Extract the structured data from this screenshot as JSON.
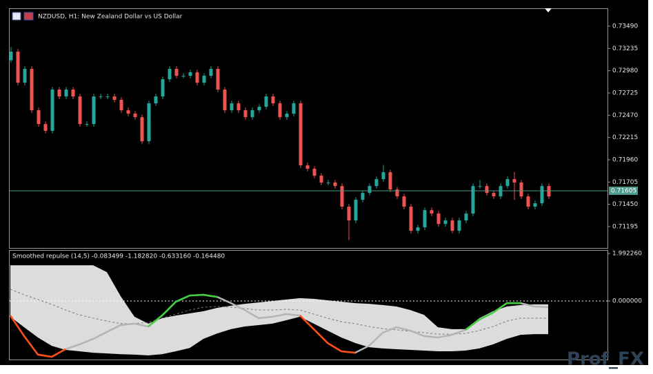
{
  "chart_data": [
    {
      "type": "candlestick",
      "title": "NZDUSD, H1:  New Zealand Dollar vs US Dollar",
      "open": [
        0.731,
        0.73198,
        0.72843,
        0.73001,
        0.72527,
        0.72369,
        0.72291,
        0.72764,
        0.72685,
        0.72764,
        0.72685,
        0.72369,
        0.72369,
        0.72685,
        0.72685,
        0.72685,
        0.72646,
        0.72527,
        0.72488,
        0.72448,
        0.72172,
        0.72606,
        0.72685,
        0.72882,
        0.73001,
        0.72922,
        0.72922,
        0.72961,
        0.72843,
        0.72922,
        0.73001,
        0.72764,
        0.72527,
        0.72606,
        0.72527,
        0.72448,
        0.72527,
        0.72567,
        0.72685,
        0.72606,
        0.72448,
        0.72488,
        0.72606,
        0.71896,
        0.71857,
        0.71778,
        0.71699,
        0.71699,
        0.71659,
        0.71423,
        0.71265,
        0.71502,
        0.7158,
        0.71659,
        0.71738,
        0.71817,
        0.7162,
        0.71541,
        0.71423,
        0.71147,
        0.71186,
        0.71383,
        0.71344,
        0.71225,
        0.71265,
        0.71147,
        0.71265,
        0.71344,
        0.71659,
        0.71659,
        0.7158,
        0.71541,
        0.71659,
        0.71738,
        0.71699,
        0.71541,
        0.71423,
        0.71462,
        0.71659
      ],
      "high": [
        0.7325,
        0.73228,
        0.73031,
        0.73031,
        0.72557,
        0.72399,
        0.72794,
        0.72794,
        0.72794,
        0.72794,
        0.72715,
        0.72399,
        0.72715,
        0.72715,
        0.72715,
        0.72715,
        0.72676,
        0.72557,
        0.72518,
        0.72478,
        0.72636,
        0.72715,
        0.72912,
        0.73031,
        0.73031,
        0.72952,
        0.72991,
        0.72991,
        0.72952,
        0.73031,
        0.73031,
        0.72794,
        0.72636,
        0.72636,
        0.72557,
        0.72557,
        0.72597,
        0.72715,
        0.72715,
        0.72636,
        0.72518,
        0.72636,
        0.72636,
        0.71926,
        0.71887,
        0.71808,
        0.71729,
        0.71729,
        0.71689,
        0.71453,
        0.71532,
        0.7161,
        0.71689,
        0.71768,
        0.719,
        0.71847,
        0.7165,
        0.71571,
        0.71453,
        0.71216,
        0.71413,
        0.71413,
        0.71374,
        0.71295,
        0.71295,
        0.71295,
        0.71374,
        0.71689,
        0.71729,
        0.71689,
        0.7161,
        0.71689,
        0.71768,
        0.7182,
        0.71729,
        0.71571,
        0.71492,
        0.71689,
        0.71689
      ],
      "low": [
        0.7307,
        0.72813,
        0.72813,
        0.72497,
        0.72339,
        0.72261,
        0.72261,
        0.72655,
        0.72655,
        0.72655,
        0.72339,
        0.72339,
        0.72339,
        0.72655,
        0.72655,
        0.72616,
        0.72497,
        0.72458,
        0.72418,
        0.72142,
        0.72142,
        0.72576,
        0.72655,
        0.72852,
        0.72892,
        0.72892,
        0.72892,
        0.72813,
        0.72813,
        0.72892,
        0.72734,
        0.72497,
        0.72497,
        0.72497,
        0.72418,
        0.72418,
        0.72497,
        0.72537,
        0.72576,
        0.72418,
        0.72418,
        0.72458,
        0.71866,
        0.71827,
        0.71748,
        0.71669,
        0.71669,
        0.71629,
        0.71393,
        0.7104,
        0.71235,
        0.71472,
        0.7155,
        0.71629,
        0.71708,
        0.7159,
        0.71511,
        0.71393,
        0.71117,
        0.71117,
        0.71156,
        0.71314,
        0.71195,
        0.71195,
        0.71117,
        0.71117,
        0.71235,
        0.71314,
        0.71629,
        0.7155,
        0.71511,
        0.71511,
        0.71629,
        0.715,
        0.71511,
        0.71393,
        0.71393,
        0.71432,
        0.71511
      ],
      "close": [
        0.73198,
        0.72843,
        0.73001,
        0.72527,
        0.72369,
        0.72291,
        0.72764,
        0.72685,
        0.72764,
        0.72685,
        0.72369,
        0.72369,
        0.72685,
        0.72685,
        0.72685,
        0.72646,
        0.72527,
        0.72488,
        0.72448,
        0.72172,
        0.72606,
        0.72685,
        0.72882,
        0.73001,
        0.72922,
        0.72922,
        0.72961,
        0.72843,
        0.72922,
        0.73001,
        0.72764,
        0.72527,
        0.72606,
        0.72527,
        0.72448,
        0.72527,
        0.72567,
        0.72685,
        0.72606,
        0.72448,
        0.72488,
        0.72606,
        0.71896,
        0.71857,
        0.71778,
        0.71699,
        0.71699,
        0.71659,
        0.71423,
        0.71265,
        0.71502,
        0.7158,
        0.71659,
        0.71738,
        0.71817,
        0.7162,
        0.71541,
        0.71423,
        0.71147,
        0.71186,
        0.71383,
        0.71344,
        0.71225,
        0.71265,
        0.71147,
        0.71265,
        0.71344,
        0.71659,
        0.71659,
        0.7158,
        0.71541,
        0.71659,
        0.71738,
        0.71699,
        0.71541,
        0.71423,
        0.71462,
        0.71659,
        0.71541
      ],
      "up_color": "#26a69a",
      "down_color": "#ef5350",
      "ylim": [
        0.7095,
        0.73695
      ],
      "yticks": [
        {
          "value": 0.7349,
          "label": "0.73490"
        },
        {
          "value": 0.73235,
          "label": "0.73235"
        },
        {
          "value": 0.7298,
          "label": "0.72980"
        },
        {
          "value": 0.72725,
          "label": "0.72725"
        },
        {
          "value": 0.7247,
          "label": "0.72470"
        },
        {
          "value": 0.72215,
          "label": "0.72215"
        },
        {
          "value": 0.7196,
          "label": "0.71960"
        },
        {
          "value": 0.71705,
          "label": "0.71705"
        },
        {
          "value": 0.7145,
          "label": "0.71450"
        },
        {
          "value": 0.71195,
          "label": "0.71195"
        }
      ],
      "current_price": {
        "value": 0.71605,
        "label": "0.71605"
      },
      "current_price_color": "#4e9a8c"
    },
    {
      "type": "line",
      "title": "Smoothed repulse (14,5) -0.083499 -1.182820 -0.633160 -0.164480",
      "band_color": "#dcdcdc",
      "series": [
        {
          "color": "#dcdcdc",
          "values": [
            1.5,
            1.5,
            1.5,
            1.5,
            1.5,
            1.5,
            1.5,
            1.21,
            0.2,
            -0.66,
            -0.95,
            -0.72,
            -0.61,
            -0.52,
            -0.43,
            -0.29,
            -0.2,
            -0.12,
            -0.06,
            0,
            0.06,
            0.12,
            0.09,
            0.03,
            -0.03,
            -0.09,
            -0.12,
            -0.17,
            -0.23,
            -0.38,
            -0.58,
            -1.1,
            -1.18,
            -1.18,
            -0.72,
            -0.43,
            -0.23,
            -0.17,
            -0.14,
            -0.14
          ]
        },
        {
          "color": "#dcdcdc",
          "values": [
            -0.66,
            -1.1,
            -1.53,
            -1.88,
            -2.05,
            -2.11,
            -2.17,
            -2.2,
            -2.23,
            -2.25,
            -2.28,
            -2.23,
            -2.11,
            -1.97,
            -1.59,
            -1.36,
            -1.18,
            -1.07,
            -1.01,
            -0.95,
            -0.81,
            -0.66,
            -0.95,
            -1.24,
            -1.53,
            -1.76,
            -1.94,
            -1.99,
            -2.02,
            -2.05,
            -2.08,
            -2.11,
            -2.11,
            -2.08,
            -1.99,
            -1.82,
            -1.59,
            -1.42,
            -1.39,
            -1.39
          ]
        },
        {
          "color": "#777777",
          "dashed": true,
          "values": [
            0.49,
            0.26,
            0.06,
            -0.14,
            -0.38,
            -0.58,
            -0.72,
            -0.84,
            -0.95,
            -0.95,
            -0.9,
            -0.72,
            -0.55,
            -0.38,
            -0.26,
            -0.23,
            -0.26,
            -0.32,
            -0.38,
            -0.38,
            -0.35,
            -0.38,
            -0.55,
            -0.72,
            -0.87,
            -0.95,
            -1.07,
            -1.16,
            -1.21,
            -1.27,
            -1.33,
            -1.39,
            -1.39,
            -1.36,
            -1.24,
            -1.07,
            -0.84,
            -0.72,
            -0.72,
            -0.72
          ]
        },
        {
          "color": "#b4b4b4",
          "values": [
            -0.61,
            -1.47,
            -2.25,
            -2.34,
            -2.02,
            -1.82,
            -1.59,
            -1.3,
            -1.01,
            -0.95,
            -1.07,
            -0.61,
            -0.03,
            0.23,
            0.26,
            0.17,
            -0.09,
            -0.38,
            -0.72,
            -0.66,
            -0.55,
            -0.61,
            -1.18,
            -1.76,
            -2.11,
            -2.17,
            -1.88,
            -1.33,
            -1.1,
            -1.24,
            -1.47,
            -1.53,
            -1.42,
            -1.21,
            -0.78,
            -0.49,
            -0.09,
            -0.09,
            -0.23,
            -0.26
          ]
        },
        {
          "color": "#3fcf3f",
          "values": [
            null,
            null,
            null,
            null,
            null,
            null,
            null,
            null,
            null,
            null,
            -1.07,
            -0.61,
            -0.03,
            0.23,
            0.26,
            0.17,
            null,
            null,
            null,
            null,
            null,
            null,
            null,
            null,
            null,
            null,
            null,
            null,
            null,
            null,
            null,
            null,
            null,
            -1.21,
            -0.78,
            -0.49,
            -0.09,
            -0.09,
            null,
            null
          ]
        },
        {
          "color": "#ff4a12",
          "values": [
            -0.61,
            -1.47,
            -2.25,
            -2.34,
            -2.02,
            null,
            null,
            null,
            null,
            null,
            null,
            null,
            null,
            null,
            null,
            null,
            null,
            null,
            null,
            null,
            null,
            -0.61,
            -1.18,
            -1.76,
            -2.11,
            -2.17,
            null,
            null,
            null,
            null,
            null,
            null,
            null,
            null,
            null,
            null,
            null,
            null,
            null,
            null
          ]
        }
      ],
      "ylim": [
        -2.455,
        2.138
      ],
      "yticks": [
        {
          "value": 1.99226,
          "label": "1.992260"
        },
        {
          "value": 0,
          "label": "0.000000"
        }
      ],
      "levels": [
        0
      ]
    }
  ],
  "watermark": "Prof_FX"
}
